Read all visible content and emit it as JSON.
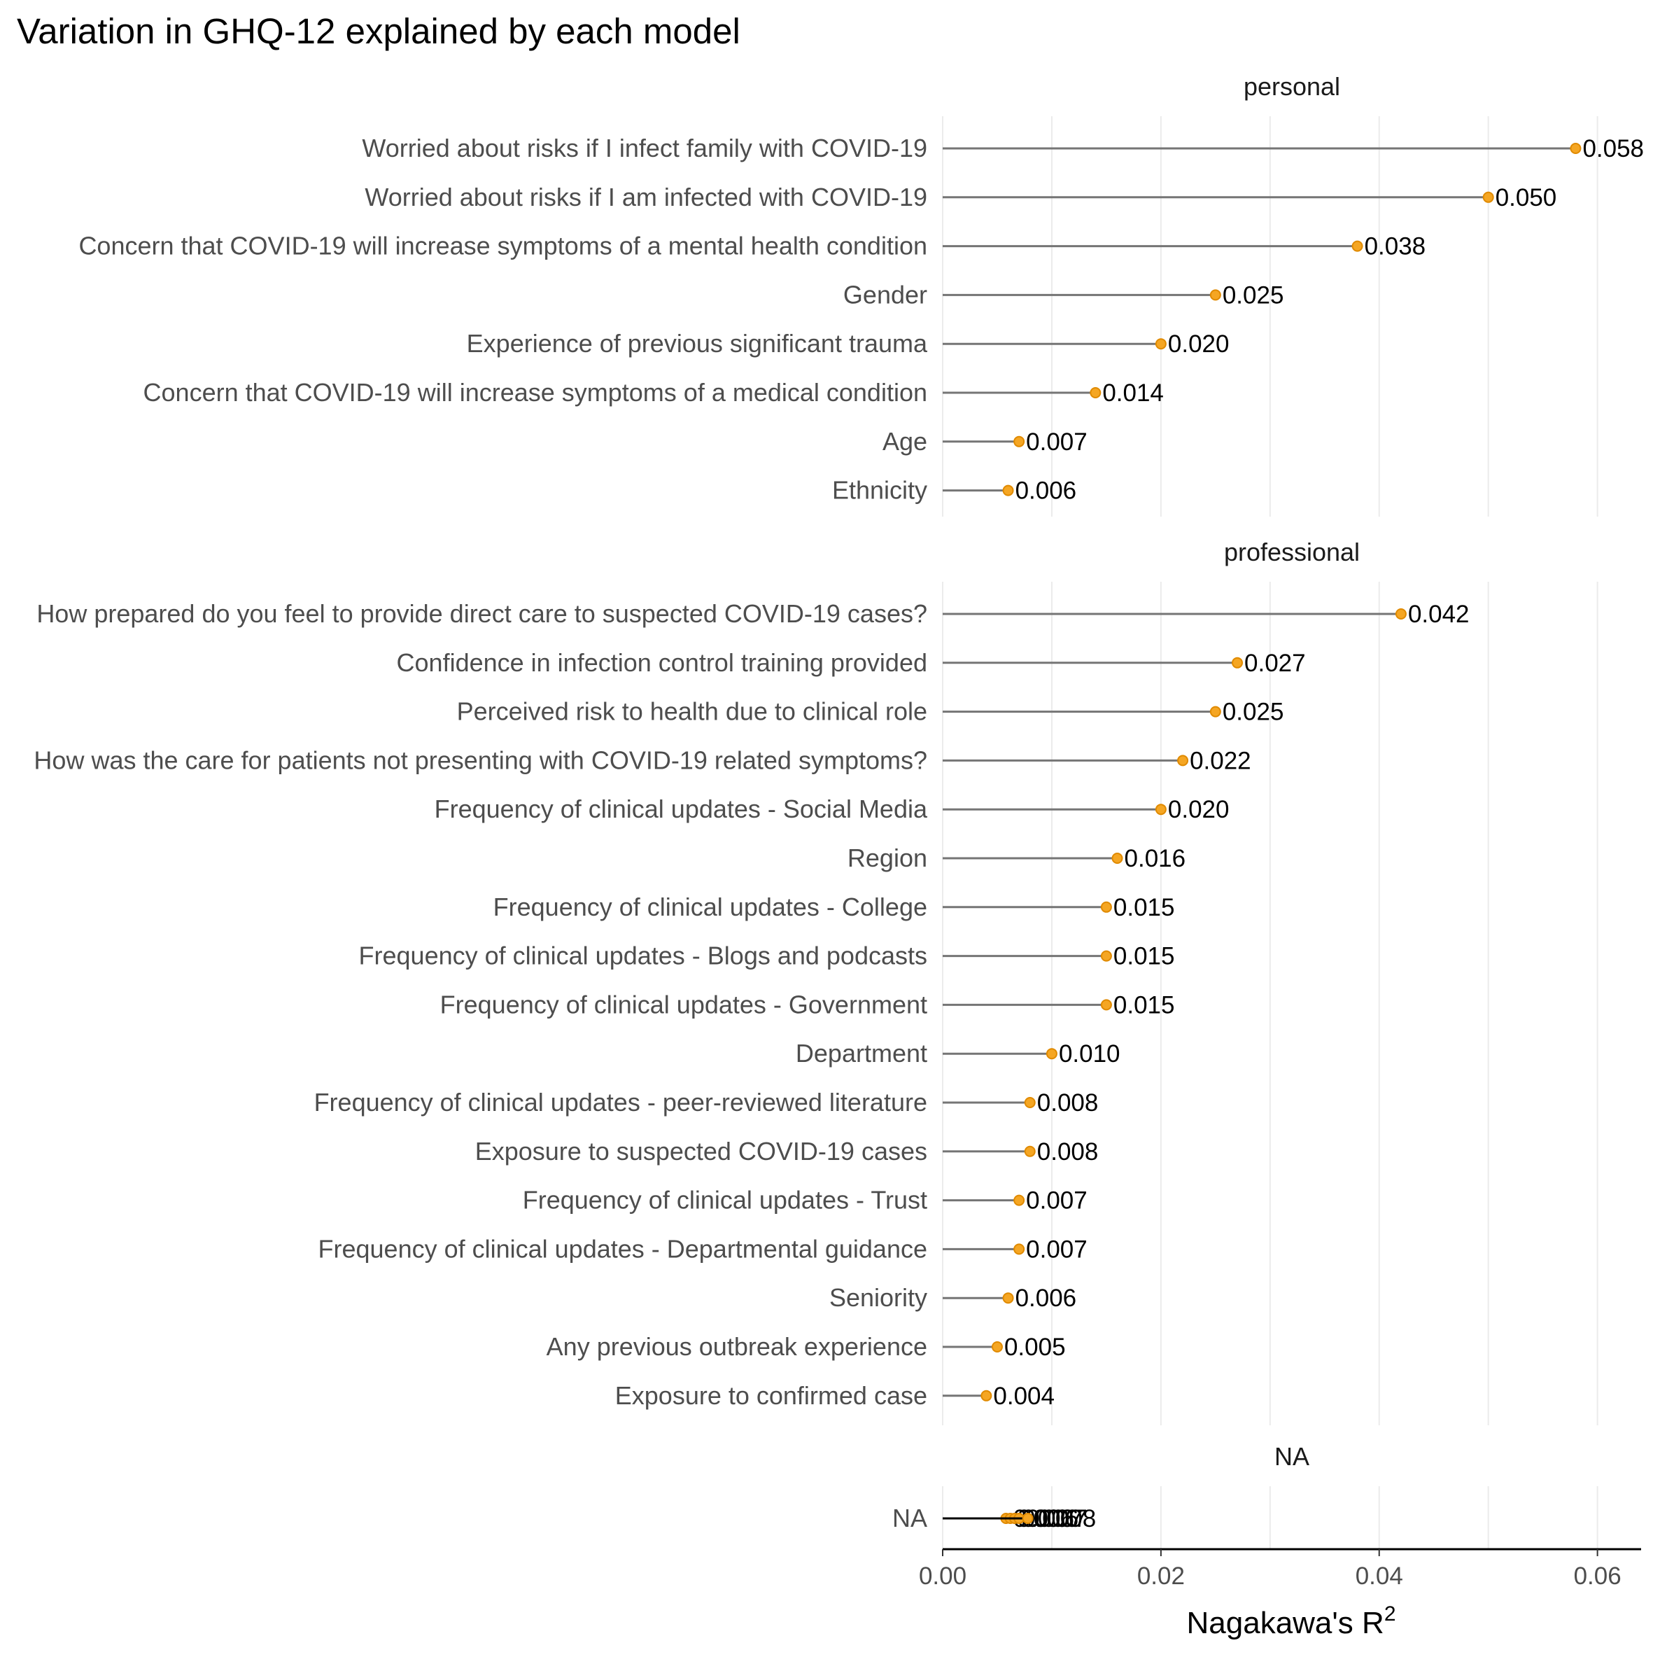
{
  "chart_data": {
    "type": "lollipop",
    "title": "Variation in GHQ-12 explained by each model",
    "xlabel": "Nagakawa's R",
    "xlabel_superscript": "2",
    "xlim": [
      0,
      0.064
    ],
    "x_ticks": [
      0.0,
      0.02,
      0.04,
      0.06
    ],
    "x_tick_labels": [
      "0.00",
      "0.02",
      "0.04",
      "0.06"
    ],
    "grid": "vertical major",
    "colors": {
      "point": "#F5A623",
      "point_edge": "#E08A00",
      "segment": "#757575",
      "grid": "#EBEBEB",
      "axis": "#000000"
    },
    "panels": [
      {
        "strip": "personal",
        "rows": [
          {
            "label": "Worried about risks if I infect family with COVID-19",
            "value": 0.058,
            "value_label": "0.058"
          },
          {
            "label": "Worried about risks if I am infected with COVID-19",
            "value": 0.05,
            "value_label": "0.050"
          },
          {
            "label": "Concern that COVID-19 will increase symptoms of a mental health condition",
            "value": 0.038,
            "value_label": "0.038"
          },
          {
            "label": "Gender",
            "value": 0.025,
            "value_label": "0.025"
          },
          {
            "label": "Experience of previous significant trauma",
            "value": 0.02,
            "value_label": "0.020"
          },
          {
            "label": "Concern that COVID-19 will increase symptoms of a medical condition",
            "value": 0.014,
            "value_label": "0.014"
          },
          {
            "label": "Age",
            "value": 0.007,
            "value_label": "0.007"
          },
          {
            "label": "Ethnicity",
            "value": 0.006,
            "value_label": "0.006"
          }
        ]
      },
      {
        "strip": "professional",
        "rows": [
          {
            "label": "How prepared do you feel to provide direct care to suspected COVID-19 cases?",
            "value": 0.042,
            "value_label": "0.042"
          },
          {
            "label": "Confidence in infection control training provided",
            "value": 0.027,
            "value_label": "0.027"
          },
          {
            "label": "Perceived risk to health due to clinical role",
            "value": 0.025,
            "value_label": "0.025"
          },
          {
            "label": "How was the care for patients not presenting with COVID-19 related symptoms?",
            "value": 0.022,
            "value_label": "0.022"
          },
          {
            "label": "Frequency of clinical updates - Social Media",
            "value": 0.02,
            "value_label": "0.020"
          },
          {
            "label": "Region",
            "value": 0.016,
            "value_label": "0.016"
          },
          {
            "label": "Frequency of clinical updates - College",
            "value": 0.015,
            "value_label": "0.015"
          },
          {
            "label": "Frequency of clinical updates - Blogs and podcasts",
            "value": 0.015,
            "value_label": "0.015"
          },
          {
            "label": "Frequency of clinical updates - Government",
            "value": 0.015,
            "value_label": "0.015"
          },
          {
            "label": "Department",
            "value": 0.01,
            "value_label": "0.010"
          },
          {
            "label": "Frequency of clinical updates - peer-reviewed literature",
            "value": 0.008,
            "value_label": "0.008"
          },
          {
            "label": "Exposure to suspected COVID-19 cases",
            "value": 0.008,
            "value_label": "0.008"
          },
          {
            "label": "Frequency of clinical updates - Trust",
            "value": 0.007,
            "value_label": "0.007"
          },
          {
            "label": "Frequency of clinical updates - Departmental guidance",
            "value": 0.007,
            "value_label": "0.007"
          },
          {
            "label": "Seniority",
            "value": 0.006,
            "value_label": "0.006"
          },
          {
            "label": "Any previous outbreak experience",
            "value": 0.005,
            "value_label": "0.005"
          },
          {
            "label": "Exposure to confirmed case",
            "value": 0.004,
            "value_label": "0.004"
          }
        ]
      },
      {
        "strip": "NA",
        "rows": [
          {
            "label": "NA",
            "value": 0.0058,
            "value_label": "0.006"
          },
          {
            "label": "NA",
            "value": 0.0062,
            "value_label": "0.006"
          },
          {
            "label": "NA",
            "value": 0.0066,
            "value_label": "0.007"
          },
          {
            "label": "NA",
            "value": 0.007,
            "value_label": "0.007"
          },
          {
            "label": "NA",
            "value": 0.0078,
            "value_label": "0.008"
          }
        ]
      }
    ]
  }
}
